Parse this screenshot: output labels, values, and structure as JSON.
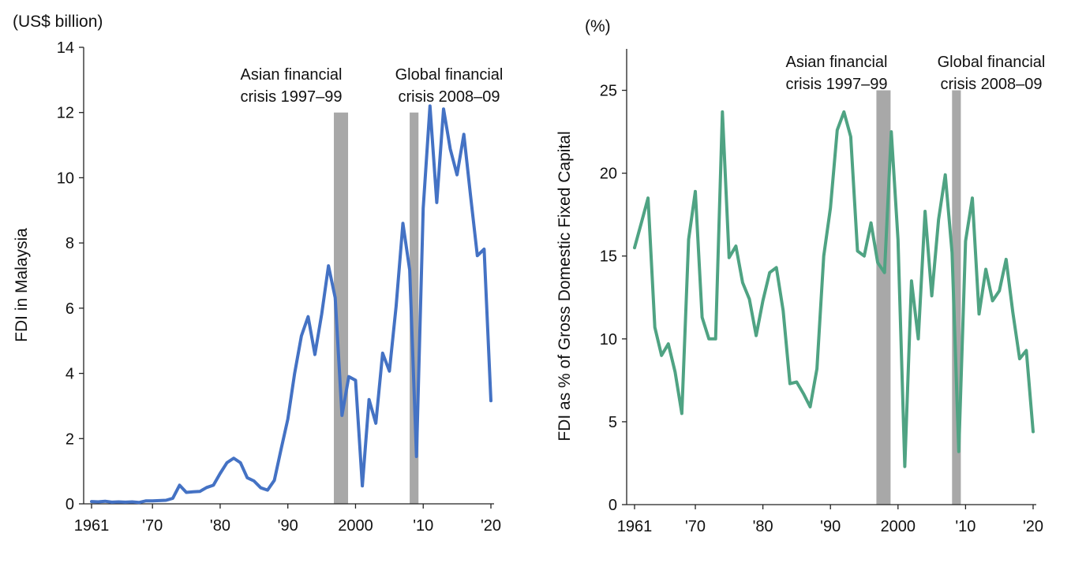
{
  "chart_data": [
    {
      "type": "line",
      "unit_label": "(US$ billion)",
      "ylabel": "FDI in Malaysia",
      "xlabel": "",
      "xlim": [
        1961,
        2020
      ],
      "ylim": [
        0,
        14
      ],
      "yticks": [
        0,
        2,
        4,
        6,
        8,
        10,
        12,
        14
      ],
      "xticks": [
        {
          "x": 1961,
          "label": "1961"
        },
        {
          "x": 1970,
          "label": "'70"
        },
        {
          "x": 1980,
          "label": "'80"
        },
        {
          "x": 1990,
          "label": "'90"
        },
        {
          "x": 2000,
          "label": "2000"
        },
        {
          "x": 2010,
          "label": "'10"
        },
        {
          "x": 2020,
          "label": "'20"
        }
      ],
      "grid": false,
      "color": "#4472C4",
      "crisis_bands": [
        {
          "label_line1": "Asian financial",
          "label_line2": "crisis 1997–99",
          "start": 1996.8,
          "end": 1998.9,
          "top": 12
        },
        {
          "label_line1": "Global financial",
          "label_line2": "crisis 2008–09",
          "start": 2008.0,
          "end": 2009.3,
          "top": 12
        }
      ],
      "series": [
        {
          "x": [
            1961,
            1962,
            1963,
            1964,
            1965,
            1966,
            1967,
            1968,
            1969,
            1970,
            1971,
            1972,
            1973,
            1974,
            1975,
            1976,
            1977,
            1978,
            1979,
            1980,
            1981,
            1982,
            1983,
            1984,
            1985,
            1986,
            1987,
            1988,
            1989,
            1990,
            1991,
            1992,
            1993,
            1994,
            1995,
            1996,
            1997,
            1998,
            1999,
            2000,
            2001,
            2002,
            2003,
            2004,
            2005,
            2006,
            2007,
            2008,
            2009,
            2010,
            2011,
            2012,
            2013,
            2014,
            2015,
            2016,
            2017,
            2018,
            2019,
            2020
          ],
          "values": [
            0.07,
            0.06,
            0.08,
            0.05,
            0.06,
            0.05,
            0.06,
            0.04,
            0.09,
            0.09,
            0.1,
            0.11,
            0.17,
            0.57,
            0.35,
            0.37,
            0.38,
            0.5,
            0.57,
            0.93,
            1.26,
            1.4,
            1.26,
            0.8,
            0.7,
            0.49,
            0.42,
            0.72,
            1.67,
            2.6,
            4.0,
            5.15,
            5.74,
            4.58,
            5.82,
            7.3,
            6.32,
            2.71,
            3.9,
            3.79,
            0.55,
            3.2,
            2.47,
            4.62,
            4.07,
            6.06,
            8.6,
            7.17,
            1.45,
            9.06,
            12.2,
            9.24,
            12.11,
            10.88,
            10.09,
            11.33,
            9.43,
            7.61,
            7.81,
            3.16
          ]
        }
      ]
    },
    {
      "type": "line",
      "unit_label": "(%)",
      "ylabel": "FDI as % of Gross Domestic Fixed Capital",
      "xlabel": "",
      "xlim": [
        1961,
        2020
      ],
      "ylim": [
        0,
        27.5
      ],
      "yticks": [
        0,
        5,
        10,
        15,
        20,
        25
      ],
      "xticks": [
        {
          "x": 1961,
          "label": "1961"
        },
        {
          "x": 1970,
          "label": "'70"
        },
        {
          "x": 1980,
          "label": "'80"
        },
        {
          "x": 1990,
          "label": "'90"
        },
        {
          "x": 2000,
          "label": "2000"
        },
        {
          "x": 2010,
          "label": "'10"
        },
        {
          "x": 2020,
          "label": "'20"
        }
      ],
      "grid": false,
      "color": "#4FA383",
      "crisis_bands": [
        {
          "label_line1": "Asian financial",
          "label_line2": "crisis 1997–99",
          "start": 1996.8,
          "end": 1998.9,
          "top": 25
        },
        {
          "label_line1": "Global financial",
          "label_line2": "crisis 2008–09",
          "start": 2008.0,
          "end": 2009.3,
          "top": 25
        }
      ],
      "series": [
        {
          "x": [
            1961,
            1962,
            1963,
            1964,
            1965,
            1966,
            1967,
            1968,
            1969,
            1970,
            1971,
            1972,
            1973,
            1974,
            1975,
            1976,
            1977,
            1978,
            1979,
            1980,
            1981,
            1982,
            1983,
            1984,
            1985,
            1986,
            1987,
            1988,
            1989,
            1990,
            1991,
            1992,
            1993,
            1994,
            1995,
            1996,
            1997,
            1998,
            1999,
            2000,
            2001,
            2002,
            2003,
            2004,
            2005,
            2006,
            2007,
            2008,
            2009,
            2010,
            2011,
            2012,
            2013,
            2014,
            2015,
            2016,
            2017,
            2018,
            2019,
            2020
          ],
          "values": [
            15.5,
            17.0,
            18.5,
            10.7,
            9.0,
            9.7,
            8.0,
            5.5,
            16.0,
            18.9,
            11.3,
            10.0,
            10.0,
            23.7,
            14.9,
            15.6,
            13.4,
            12.4,
            10.2,
            12.3,
            14.0,
            14.3,
            11.7,
            7.3,
            7.4,
            6.7,
            5.9,
            8.2,
            15.0,
            17.9,
            22.6,
            23.7,
            22.2,
            15.3,
            15.0,
            17.0,
            14.6,
            14.0,
            22.5,
            16.0,
            2.3,
            13.5,
            10.0,
            17.7,
            12.6,
            17.2,
            19.9,
            15.2,
            3.2,
            15.9,
            18.5,
            11.5,
            14.2,
            12.3,
            12.9,
            14.8,
            11.6,
            8.8,
            9.3,
            4.4
          ]
        }
      ]
    }
  ]
}
